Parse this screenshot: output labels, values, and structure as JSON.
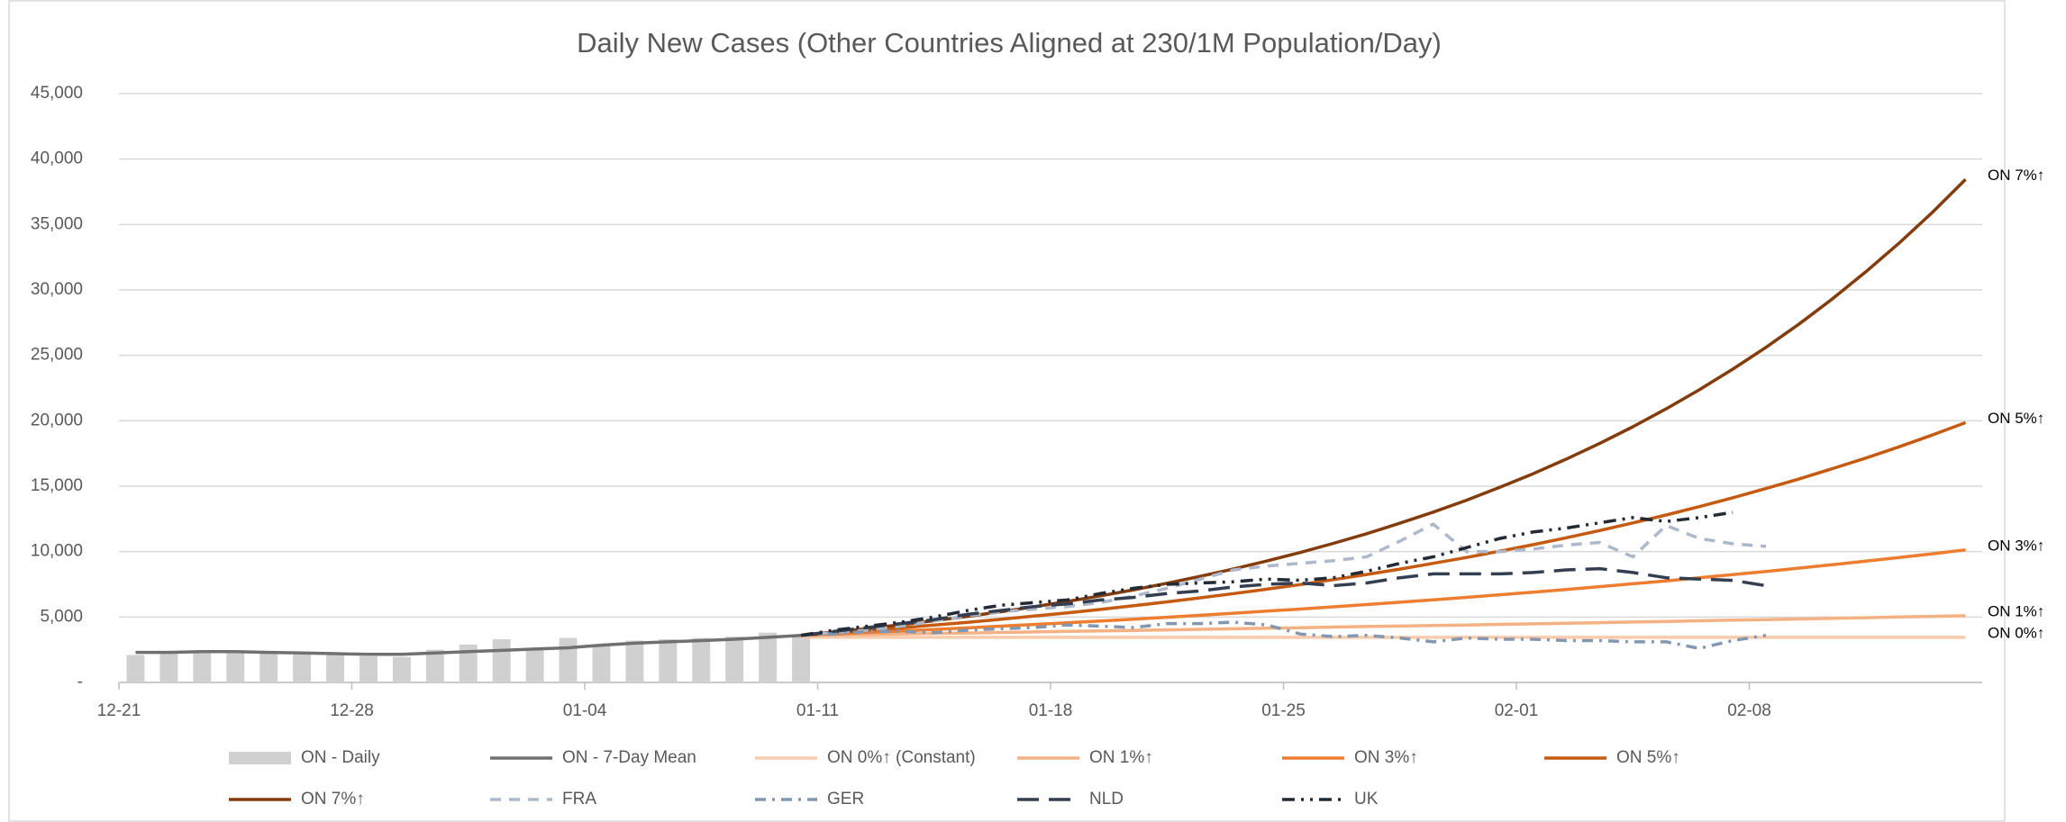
{
  "chart_data": {
    "type": "combo",
    "title": "Daily New Cases (Other Countries Aligned at 230/1M Population/Day)",
    "categories": [
      "12-21",
      null,
      null,
      null,
      null,
      null,
      null,
      "12-28",
      null,
      null,
      null,
      null,
      null,
      null,
      "01-04",
      null,
      null,
      null,
      null,
      null,
      null,
      "01-11",
      null,
      null,
      null,
      null,
      null,
      null,
      "01-18",
      null,
      null,
      null,
      null,
      null,
      null,
      "01-25",
      null,
      null,
      null,
      null,
      null,
      null,
      "02-01",
      null,
      null,
      null,
      null,
      null,
      null,
      "02-08",
      null,
      null,
      null,
      null,
      null,
      null
    ],
    "ylim": [
      0,
      45000
    ],
    "yticks": [
      {
        "value": 0,
        "label": "-"
      },
      {
        "value": 5000,
        "label": "5,000"
      },
      {
        "value": 10000,
        "label": "10,000"
      },
      {
        "value": 15000,
        "label": "15,000"
      },
      {
        "value": 20000,
        "label": "20,000"
      },
      {
        "value": 25000,
        "label": "25,000"
      },
      {
        "value": 30000,
        "label": "30,000"
      },
      {
        "value": 35000,
        "label": "35,000"
      },
      {
        "value": 40000,
        "label": "40,000"
      },
      {
        "value": 45000,
        "label": "45,000"
      }
    ],
    "grid": true,
    "legend": "bottom",
    "series": [
      {
        "name": "ON - Daily",
        "type": "bar",
        "color": "#d0d0d0",
        "values": [
          2100,
          2200,
          2300,
          2300,
          2300,
          2200,
          2100,
          2000,
          1950,
          2500,
          2900,
          3300,
          2500,
          3400,
          2900,
          3200,
          3300,
          3400,
          3500,
          3800,
          3600,
          null,
          null,
          null,
          null,
          null,
          null,
          null,
          null,
          null,
          null,
          null,
          null,
          null,
          null,
          null,
          null,
          null,
          null,
          null,
          null,
          null,
          null,
          null,
          null,
          null,
          null,
          null,
          null,
          null,
          null,
          null,
          null,
          null,
          null,
          null
        ]
      },
      {
        "name": "ON - 7-Day Mean",
        "type": "line",
        "color": "#707070",
        "dash": "solid",
        "values": [
          2300,
          2300,
          2350,
          2350,
          2300,
          2250,
          2200,
          2150,
          2150,
          2250,
          2350,
          2450,
          2550,
          2650,
          2850,
          3000,
          3100,
          3200,
          3300,
          3450,
          3600,
          null,
          null,
          null,
          null,
          null,
          null,
          null,
          null,
          null,
          null,
          null,
          null,
          null,
          null,
          null,
          null,
          null,
          null,
          null,
          null,
          null,
          null,
          null,
          null,
          null,
          null,
          null,
          null,
          null,
          null,
          null,
          null,
          null,
          null,
          null
        ]
      },
      {
        "name": "ON 0%↑ (Constant)",
        "end_label": "ON 0%↑",
        "type": "line",
        "color": "#f8cbad",
        "dash": "solid",
        "values": [
          null,
          null,
          null,
          null,
          null,
          null,
          null,
          null,
          null,
          null,
          null,
          null,
          null,
          null,
          null,
          null,
          null,
          null,
          null,
          null,
          3450,
          3450,
          3450,
          3450,
          3450,
          3450,
          3450,
          3450,
          3450,
          3450,
          3450,
          3450,
          3450,
          3450,
          3450,
          3450,
          3450,
          3450,
          3450,
          3450,
          3450,
          3450,
          3450,
          3450,
          3450,
          3450,
          3450,
          3450,
          3450,
          3450,
          3450,
          3450,
          3450,
          3450,
          3450,
          3450
        ]
      },
      {
        "name": "ON 1%↑",
        "end_label": "ON 1%↑",
        "type": "line",
        "color": "#f4b183",
        "dash": "solid",
        "values": [
          null,
          null,
          null,
          null,
          null,
          null,
          null,
          null,
          null,
          null,
          null,
          null,
          null,
          null,
          null,
          null,
          null,
          null,
          null,
          null,
          3600,
          3640,
          3670,
          3710,
          3750,
          3780,
          3820,
          3860,
          3900,
          3940,
          3980,
          4020,
          4060,
          4100,
          4140,
          4180,
          4230,
          4270,
          4310,
          4350,
          4390,
          4440,
          4480,
          4530,
          4570,
          4620,
          4660,
          4710,
          4760,
          4800,
          4850,
          4900,
          4950,
          5000,
          5050,
          5100
        ]
      },
      {
        "name": "ON 3%↑",
        "end_label": "ON 3%↑",
        "type": "line",
        "color": "#ed7d31",
        "dash": "solid",
        "values": [
          null,
          null,
          null,
          null,
          null,
          null,
          null,
          null,
          null,
          null,
          null,
          null,
          null,
          null,
          null,
          null,
          null,
          null,
          null,
          null,
          3600,
          3710,
          3820,
          3930,
          4050,
          4170,
          4300,
          4430,
          4560,
          4700,
          4840,
          4980,
          5130,
          5290,
          5450,
          5610,
          5780,
          5950,
          6130,
          6310,
          6500,
          6700,
          6900,
          7110,
          7320,
          7540,
          7760,
          8000,
          8240,
          8480,
          8740,
          9000,
          9270,
          9550,
          9830,
          10130
        ]
      },
      {
        "name": "ON 5%↑",
        "end_label": "ON 5%↑",
        "type": "line",
        "color": "#c55a11",
        "dash": "solid",
        "values": [
          null,
          null,
          null,
          null,
          null,
          null,
          null,
          null,
          null,
          null,
          null,
          null,
          null,
          null,
          null,
          null,
          null,
          null,
          null,
          null,
          3600,
          3780,
          3970,
          4170,
          4380,
          4590,
          4820,
          5070,
          5320,
          5580,
          5860,
          6160,
          6470,
          6790,
          7130,
          7480,
          7860,
          8250,
          8660,
          9100,
          9550,
          10030,
          10530,
          11060,
          11610,
          12190,
          12800,
          13440,
          14110,
          14820,
          15560,
          16340,
          17150,
          18010,
          18910,
          19860
        ]
      },
      {
        "name": "ON 7%↑",
        "end_label": "ON 7%↑",
        "type": "line",
        "color": "#843c0c",
        "dash": "solid",
        "values": [
          null,
          null,
          null,
          null,
          null,
          null,
          null,
          null,
          null,
          null,
          null,
          null,
          null,
          null,
          null,
          null,
          null,
          null,
          null,
          null,
          3600,
          3850,
          4120,
          4410,
          4720,
          5050,
          5400,
          5780,
          6190,
          6620,
          7080,
          7580,
          8110,
          8680,
          9280,
          9930,
          10630,
          11370,
          12170,
          13020,
          13930,
          14910,
          15950,
          17070,
          18260,
          19540,
          20910,
          22370,
          23940,
          25610,
          27400,
          29320,
          31380,
          33570,
          35920,
          38440
        ]
      },
      {
        "name": "FRA",
        "type": "line",
        "color": "#adb9ca",
        "dash": "dash",
        "values": [
          null,
          null,
          null,
          null,
          null,
          null,
          null,
          null,
          null,
          null,
          null,
          null,
          null,
          null,
          null,
          null,
          null,
          null,
          null,
          null,
          3600,
          3800,
          4000,
          4300,
          4700,
          5100,
          5400,
          5600,
          5800,
          6100,
          6600,
          7200,
          7900,
          8600,
          8900,
          9100,
          9300,
          9600,
          10800,
          12100,
          10000,
          10000,
          10200,
          10500,
          10700,
          9600,
          12000,
          11000,
          10600,
          10400,
          null,
          null,
          null,
          null,
          null,
          null
        ]
      },
      {
        "name": "GER",
        "type": "line",
        "color": "#8497b0",
        "dash": "dashdot",
        "values": [
          null,
          null,
          null,
          null,
          null,
          null,
          null,
          null,
          null,
          null,
          null,
          null,
          null,
          null,
          null,
          null,
          null,
          null,
          null,
          null,
          3600,
          3700,
          3900,
          3900,
          3800,
          4000,
          4100,
          4200,
          4400,
          4300,
          4200,
          4500,
          4500,
          4600,
          4400,
          3700,
          3500,
          3600,
          3400,
          3100,
          3400,
          3300,
          3300,
          3200,
          3200,
          3100,
          3100,
          2600,
          3200,
          3600,
          null,
          null,
          null,
          null,
          null,
          null
        ]
      },
      {
        "name": "NLD",
        "type": "line",
        "color": "#333f50",
        "dash": "longdash",
        "values": [
          null,
          null,
          null,
          null,
          null,
          null,
          null,
          null,
          null,
          null,
          null,
          null,
          null,
          null,
          null,
          null,
          null,
          null,
          null,
          null,
          3600,
          3900,
          4200,
          4500,
          4800,
          5200,
          5500,
          5800,
          6000,
          6300,
          6500,
          6800,
          7000,
          7300,
          7500,
          7600,
          7400,
          7600,
          8000,
          8300,
          8300,
          8300,
          8400,
          8600,
          8700,
          8400,
          8000,
          7900,
          7800,
          7400,
          null,
          null,
          null,
          null,
          null,
          null
        ]
      },
      {
        "name": "UK",
        "type": "line",
        "color": "#222a35",
        "dash": "dashdotdot",
        "values": [
          null,
          null,
          null,
          null,
          null,
          null,
          null,
          null,
          null,
          null,
          null,
          null,
          null,
          null,
          null,
          null,
          null,
          null,
          null,
          null,
          3600,
          4000,
          4300,
          4600,
          5000,
          5500,
          5900,
          6100,
          6300,
          6800,
          7200,
          7500,
          7600,
          7700,
          7900,
          7800,
          8000,
          8500,
          9100,
          9600,
          10300,
          11000,
          11500,
          11800,
          12200,
          12600,
          12300,
          12600,
          13000,
          null,
          null,
          null,
          null,
          null,
          null,
          null
        ]
      }
    ]
  }
}
